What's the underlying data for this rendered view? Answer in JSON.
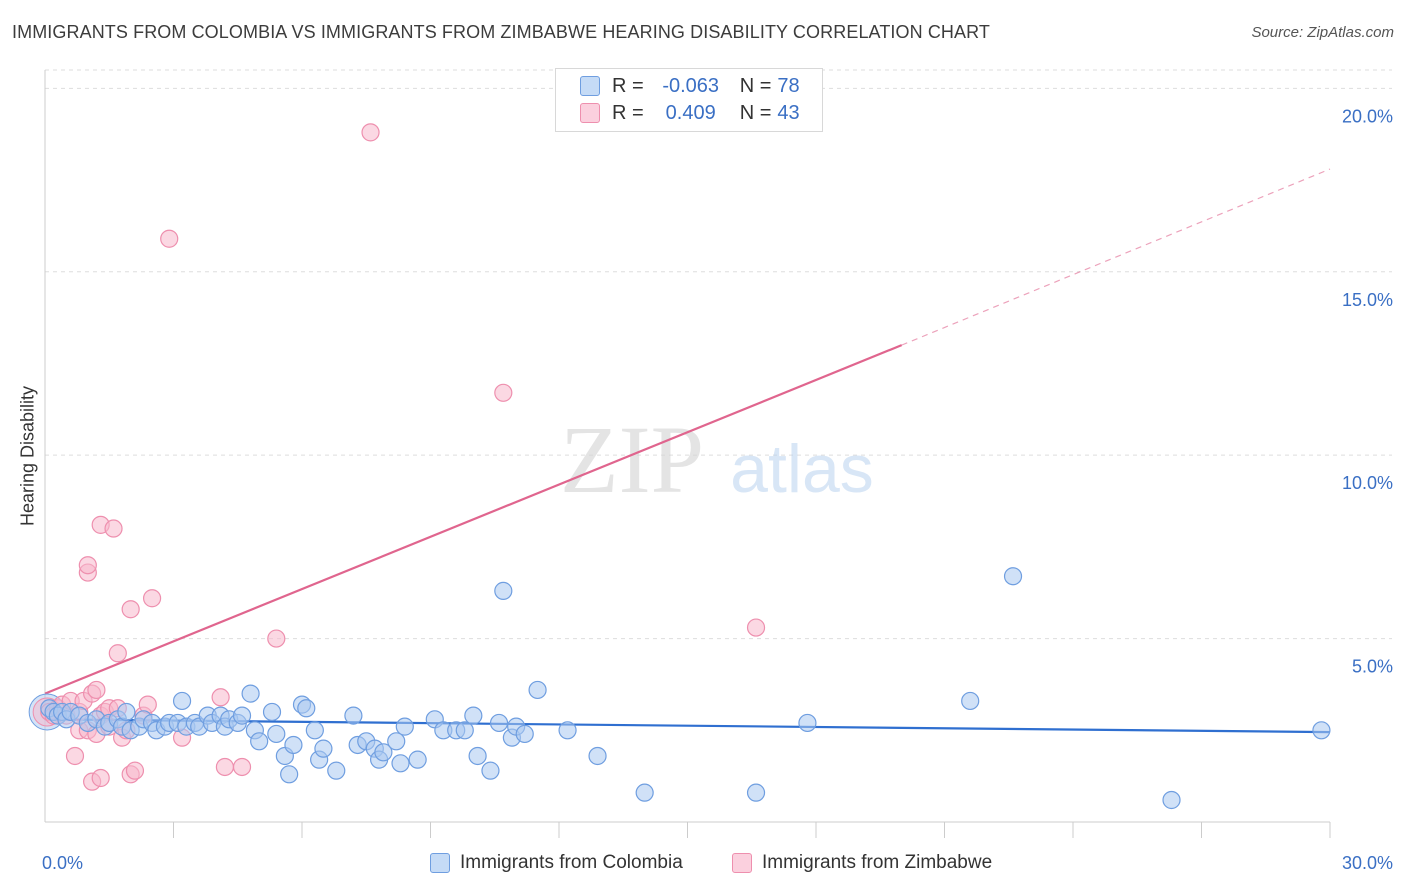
{
  "header": {
    "title": "IMMIGRANTS FROM COLOMBIA VS IMMIGRANTS FROM ZIMBABWE HEARING DISABILITY CORRELATION CHART",
    "source": "Source: ZipAtlas.com"
  },
  "watermark": {
    "zip": "ZIP",
    "atlas": "atlas"
  },
  "stats": {
    "colombia": {
      "r_label": "R =",
      "r_value": "-0.063",
      "n_label": "N =",
      "n_value": "78"
    },
    "zimbabwe": {
      "r_label": "R =",
      "r_value": "0.409",
      "n_label": "N =",
      "n_value": "43"
    }
  },
  "colors": {
    "colombia_fill": "#a9c8f0",
    "colombia_stroke": "#6f9ee0",
    "colombia_line": "#2f6fd0",
    "zimbabwe_fill": "#f7b8cc",
    "zimbabwe_stroke": "#ee8fae",
    "zimbabwe_line": "#e0658e",
    "tick_text": "#3a6fc4",
    "grid": "#dddddd"
  },
  "chart_data": {
    "type": "scatter",
    "title": "IMMIGRANTS FROM COLOMBIA VS IMMIGRANTS FROM ZIMBABWE HEARING DISABILITY CORRELATION CHART",
    "xlabel": "",
    "ylabel": "Hearing Disability",
    "xlim": [
      0,
      30
    ],
    "ylim": [
      0,
      20.5
    ],
    "x_ticks": [
      {
        "value": 0,
        "label": "0.0%"
      },
      {
        "value": 30,
        "label": "30.0%"
      }
    ],
    "y_ticks": [
      {
        "value": 5,
        "label": "5.0%"
      },
      {
        "value": 10,
        "label": "10.0%"
      },
      {
        "value": 15,
        "label": "15.0%"
      },
      {
        "value": 20,
        "label": "20.0%"
      }
    ],
    "legend": [
      "Immigrants from Colombia",
      "Immigrants from Zimbabwe"
    ],
    "series": [
      {
        "name": "Immigrants from Colombia",
        "trend": {
          "x0": 0,
          "y0": 2.8,
          "x1": 30,
          "y1": 2.45
        },
        "points": [
          [
            0.1,
            3.1
          ],
          [
            0.2,
            3.0
          ],
          [
            0.3,
            2.9
          ],
          [
            0.4,
            3.0
          ],
          [
            0.5,
            2.8
          ],
          [
            0.6,
            3.0
          ],
          [
            0.8,
            2.9
          ],
          [
            1.0,
            2.7
          ],
          [
            1.2,
            2.8
          ],
          [
            1.4,
            2.6
          ],
          [
            1.5,
            2.7
          ],
          [
            1.7,
            2.8
          ],
          [
            1.8,
            2.6
          ],
          [
            1.9,
            3.0
          ],
          [
            2.0,
            2.5
          ],
          [
            2.2,
            2.6
          ],
          [
            2.3,
            2.8
          ],
          [
            2.5,
            2.7
          ],
          [
            2.6,
            2.5
          ],
          [
            2.8,
            2.6
          ],
          [
            2.9,
            2.7
          ],
          [
            3.1,
            2.7
          ],
          [
            3.2,
            3.3
          ],
          [
            3.3,
            2.6
          ],
          [
            3.5,
            2.7
          ],
          [
            3.6,
            2.6
          ],
          [
            3.8,
            2.9
          ],
          [
            3.9,
            2.7
          ],
          [
            4.1,
            2.9
          ],
          [
            4.2,
            2.6
          ],
          [
            4.3,
            2.8
          ],
          [
            4.5,
            2.7
          ],
          [
            4.6,
            2.9
          ],
          [
            4.8,
            3.5
          ],
          [
            4.9,
            2.5
          ],
          [
            5.0,
            2.2
          ],
          [
            5.3,
            3.0
          ],
          [
            5.4,
            2.4
          ],
          [
            5.6,
            1.8
          ],
          [
            5.7,
            1.3
          ],
          [
            5.8,
            2.1
          ],
          [
            6.0,
            3.2
          ],
          [
            6.1,
            3.1
          ],
          [
            6.3,
            2.5
          ],
          [
            6.4,
            1.7
          ],
          [
            6.5,
            2.0
          ],
          [
            6.8,
            1.4
          ],
          [
            7.2,
            2.9
          ],
          [
            7.3,
            2.1
          ],
          [
            7.5,
            2.2
          ],
          [
            7.7,
            2.0
          ],
          [
            7.8,
            1.7
          ],
          [
            7.9,
            1.9
          ],
          [
            8.2,
            2.2
          ],
          [
            8.3,
            1.6
          ],
          [
            8.4,
            2.6
          ],
          [
            8.7,
            1.7
          ],
          [
            9.1,
            2.8
          ],
          [
            9.3,
            2.5
          ],
          [
            9.6,
            2.5
          ],
          [
            9.8,
            2.5
          ],
          [
            10.0,
            2.9
          ],
          [
            10.1,
            1.8
          ],
          [
            10.4,
            1.4
          ],
          [
            10.6,
            2.7
          ],
          [
            10.7,
            6.3
          ],
          [
            10.9,
            2.3
          ],
          [
            11.0,
            2.6
          ],
          [
            11.2,
            2.4
          ],
          [
            11.5,
            3.6
          ],
          [
            12.2,
            2.5
          ],
          [
            12.9,
            1.8
          ],
          [
            14.0,
            0.8
          ],
          [
            16.6,
            0.8
          ],
          [
            17.8,
            2.7
          ],
          [
            21.6,
            3.3
          ],
          [
            22.6,
            6.7
          ],
          [
            26.3,
            0.6
          ],
          [
            29.8,
            2.5
          ]
        ]
      },
      {
        "name": "Immigrants from Zimbabwe",
        "trend": {
          "x0": 0,
          "y0": 3.5,
          "x1": 20,
          "y1": 13.0,
          "dash_x1": 30,
          "dash_y1": 17.8
        },
        "points": [
          [
            0.1,
            3.0
          ],
          [
            0.2,
            2.9
          ],
          [
            0.3,
            3.1
          ],
          [
            0.4,
            3.2
          ],
          [
            0.5,
            2.9
          ],
          [
            0.6,
            3.3
          ],
          [
            0.7,
            1.8
          ],
          [
            0.8,
            3.0
          ],
          [
            0.8,
            2.5
          ],
          [
            0.9,
            3.3
          ],
          [
            1.0,
            6.8
          ],
          [
            1.0,
            7.0
          ],
          [
            1.0,
            2.5
          ],
          [
            1.1,
            3.5
          ],
          [
            1.1,
            1.1
          ],
          [
            1.2,
            2.4
          ],
          [
            1.2,
            3.6
          ],
          [
            1.3,
            8.1
          ],
          [
            1.3,
            1.2
          ],
          [
            1.3,
            2.9
          ],
          [
            1.4,
            3.0
          ],
          [
            1.5,
            3.1
          ],
          [
            1.5,
            2.6
          ],
          [
            1.6,
            8.0
          ],
          [
            1.7,
            4.6
          ],
          [
            1.7,
            3.1
          ],
          [
            1.8,
            2.3
          ],
          [
            1.9,
            2.5
          ],
          [
            2.0,
            5.8
          ],
          [
            2.0,
            1.3
          ],
          [
            2.1,
            1.4
          ],
          [
            2.3,
            2.9
          ],
          [
            2.4,
            3.2
          ],
          [
            2.5,
            6.1
          ],
          [
            2.9,
            15.9
          ],
          [
            3.2,
            2.3
          ],
          [
            4.1,
            3.4
          ],
          [
            4.2,
            1.5
          ],
          [
            4.6,
            1.5
          ],
          [
            5.4,
            5.0
          ],
          [
            7.6,
            18.8
          ],
          [
            10.7,
            11.7
          ],
          [
            16.6,
            5.3
          ]
        ]
      }
    ]
  },
  "legend": {
    "colombia": "Immigrants from Colombia",
    "zimbabwe": "Immigrants from Zimbabwe"
  }
}
